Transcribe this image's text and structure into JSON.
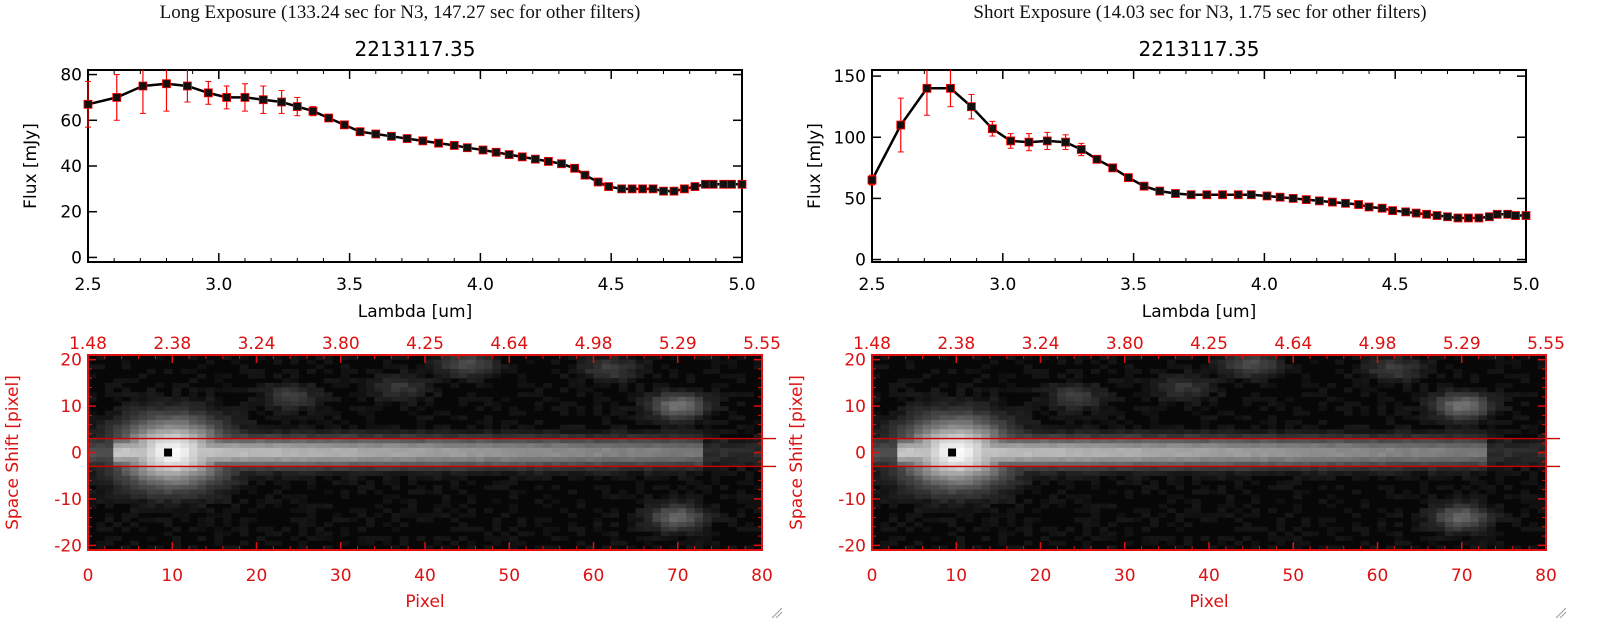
{
  "panels": [
    {
      "header": "Long Exposure (133.24 sec for N3, 147.27 sec for other filters)",
      "title": "2213117.35",
      "spectrum": {
        "ylabel": "Flux [mJy]",
        "xlabel": "Lambda [um]",
        "xlim": [
          2.5,
          5.0
        ],
        "ylim": [
          -2,
          82
        ],
        "xticks": [
          "2.5",
          "3.0",
          "3.5",
          "4.0",
          "4.5",
          "5.0"
        ],
        "yticks": [
          "0",
          "20",
          "40",
          "60",
          "80"
        ]
      },
      "image": {
        "xlabel": "Pixel",
        "ylabel": "Space Shift [pixel]",
        "xticks": [
          "0",
          "10",
          "20",
          "30",
          "40",
          "50",
          "60",
          "70",
          "80"
        ],
        "yticks": [
          "-20",
          "-10",
          "0",
          "10",
          "20"
        ],
        "top_ticks": [
          "1.48",
          "2.38",
          "3.24",
          "3.80",
          "4.25",
          "4.64",
          "4.98",
          "5.29",
          "5.55"
        ]
      }
    },
    {
      "header": "Short Exposure (14.03 sec for N3, 1.75 sec for other filters)",
      "title": "2213117.35",
      "spectrum": {
        "ylabel": "Flux [mJy]",
        "xlabel": "Lambda [um]",
        "xlim": [
          2.5,
          5.0
        ],
        "ylim": [
          -2,
          155
        ],
        "xticks": [
          "2.5",
          "3.0",
          "3.5",
          "4.0",
          "4.5",
          "5.0"
        ],
        "yticks": [
          "0",
          "50",
          "100",
          "150"
        ]
      },
      "image": {
        "xlabel": "Pixel",
        "ylabel": "Space Shift [pixel]",
        "xticks": [
          "0",
          "10",
          "20",
          "30",
          "40",
          "50",
          "60",
          "70",
          "80"
        ],
        "yticks": [
          "-20",
          "-10",
          "0",
          "10",
          "20"
        ],
        "top_ticks": [
          "1.48",
          "2.38",
          "3.24",
          "3.80",
          "4.25",
          "4.64",
          "4.98",
          "5.29",
          "5.55"
        ]
      }
    }
  ],
  "chart_data": [
    {
      "type": "line",
      "title": "2213117.35",
      "xlabel": "Lambda [um]",
      "ylabel": "Flux [mJy]",
      "xlim": [
        2.5,
        5.0
      ],
      "ylim": [
        -2,
        82
      ],
      "series": [
        {
          "x": [
            2.5,
            2.61,
            2.71,
            2.8,
            2.88,
            2.96,
            3.03,
            3.1,
            3.17,
            3.24,
            3.3,
            3.36,
            3.42,
            3.48,
            3.54,
            3.6,
            3.66,
            3.72,
            3.78,
            3.84,
            3.9,
            3.95,
            4.01,
            4.06,
            4.11,
            4.16,
            4.21,
            4.26,
            4.31,
            4.36,
            4.4,
            4.45,
            4.49,
            4.54,
            4.58,
            4.62,
            4.66,
            4.7,
            4.74,
            4.78,
            4.82,
            4.86,
            4.89,
            4.93,
            4.96,
            5.0
          ],
          "y": [
            67,
            70,
            75,
            76,
            75,
            72,
            70,
            70,
            69,
            68,
            66,
            64,
            61,
            58,
            55,
            54,
            53,
            52,
            51,
            50,
            49,
            48,
            47,
            46,
            45,
            44,
            43,
            42,
            41,
            39,
            36,
            33,
            31,
            30,
            30,
            30,
            30,
            29,
            29,
            30,
            31,
            32,
            32,
            32,
            32,
            32
          ],
          "err": [
            10,
            10,
            12,
            12,
            7,
            5,
            5,
            6,
            6,
            5,
            4,
            2,
            1,
            1,
            1,
            1,
            1,
            1,
            1,
            1,
            1,
            1,
            1,
            1,
            1,
            1,
            1,
            1,
            1,
            1,
            1,
            1,
            1,
            1,
            1,
            1,
            1,
            1,
            1,
            1,
            1,
            1,
            1,
            1,
            1,
            1
          ]
        }
      ],
      "color": "#000000",
      "err_color": "#ff0000"
    },
    {
      "type": "line",
      "title": "2213117.35",
      "xlabel": "Lambda [um]",
      "ylabel": "Flux [mJy]",
      "xlim": [
        2.5,
        5.0
      ],
      "ylim": [
        -2,
        155
      ],
      "series": [
        {
          "x": [
            2.5,
            2.61,
            2.71,
            2.8,
            2.88,
            2.96,
            3.03,
            3.1,
            3.17,
            3.24,
            3.3,
            3.36,
            3.42,
            3.48,
            3.54,
            3.6,
            3.66,
            3.72,
            3.78,
            3.84,
            3.9,
            3.95,
            4.01,
            4.06,
            4.11,
            4.16,
            4.21,
            4.26,
            4.31,
            4.36,
            4.4,
            4.45,
            4.49,
            4.54,
            4.58,
            4.62,
            4.66,
            4.7,
            4.74,
            4.78,
            4.82,
            4.86,
            4.89,
            4.93,
            4.96,
            5.0
          ],
          "y": [
            65,
            110,
            140,
            140,
            125,
            107,
            97,
            96,
            97,
            96,
            90,
            82,
            75,
            67,
            60,
            56,
            54,
            53,
            53,
            53,
            53,
            53,
            52,
            51,
            50,
            49,
            48,
            47,
            46,
            45,
            43,
            42,
            40,
            39,
            38,
            37,
            36,
            35,
            34,
            34,
            34,
            35,
            37,
            37,
            36,
            36
          ],
          "err": [
            4,
            22,
            22,
            15,
            10,
            6,
            6,
            7,
            7,
            6,
            5,
            2,
            2,
            2,
            2,
            2,
            1,
            1,
            1,
            1,
            1,
            1,
            1,
            1,
            1,
            1,
            1,
            1,
            1,
            1,
            1,
            1,
            1,
            1,
            1,
            1,
            1,
            1,
            1,
            1,
            1,
            1,
            1,
            1,
            1,
            1
          ]
        }
      ],
      "color": "#000000",
      "err_color": "#ff0000"
    },
    {
      "type": "heatmap",
      "xlabel": "Pixel",
      "ylabel": "Space Shift [pixel]",
      "xlim": [
        0,
        80
      ],
      "ylim": [
        -21,
        21
      ],
      "aperture_lines_y": [
        3,
        -3
      ],
      "peak_marker": {
        "x": 9.5,
        "y": 0
      },
      "blobs": [
        {
          "x": 10,
          "y": 0,
          "amp": 1.0
        },
        {
          "x": 70,
          "y": 10,
          "amp": 0.35
        },
        {
          "x": 70,
          "y": -14,
          "amp": 0.3
        },
        {
          "x": 45,
          "y": 19,
          "amp": 0.2
        },
        {
          "x": 62,
          "y": 18,
          "amp": 0.15
        },
        {
          "x": 24,
          "y": 12,
          "amp": 0.15
        },
        {
          "x": 37,
          "y": 14,
          "amp": 0.12
        }
      ]
    },
    {
      "type": "heatmap",
      "xlabel": "Pixel",
      "ylabel": "Space Shift [pixel]",
      "xlim": [
        0,
        80
      ],
      "ylim": [
        -21,
        21
      ],
      "aperture_lines_y": [
        3,
        -3
      ],
      "peak_marker": {
        "x": 9.5,
        "y": 0
      },
      "blobs": [
        {
          "x": 10,
          "y": 0,
          "amp": 1.0
        },
        {
          "x": 70,
          "y": 10,
          "amp": 0.35
        },
        {
          "x": 70,
          "y": -14,
          "amp": 0.3
        },
        {
          "x": 45,
          "y": 19,
          "amp": 0.2
        },
        {
          "x": 62,
          "y": 18,
          "amp": 0.15
        },
        {
          "x": 24,
          "y": 12,
          "amp": 0.15
        },
        {
          "x": 37,
          "y": 14,
          "amp": 0.12
        }
      ]
    }
  ]
}
